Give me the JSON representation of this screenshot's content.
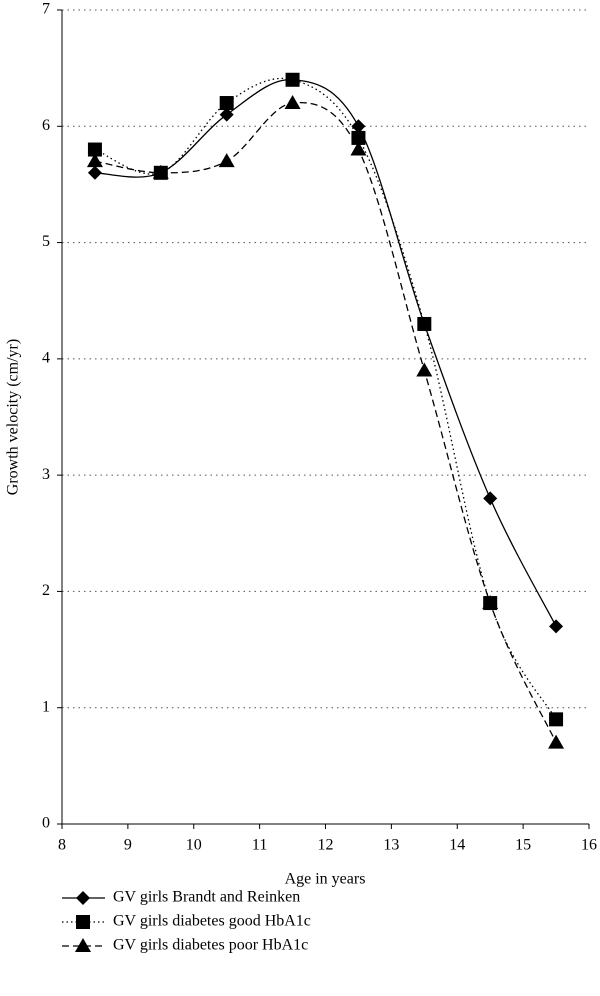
{
  "chart_data": {
    "type": "line",
    "x": [
      8.5,
      9.5,
      10.5,
      11.5,
      12.5,
      13.5,
      14.5,
      15.5
    ],
    "series": [
      {
        "name": "GV girls Brandt and Reinken",
        "color": "#000000",
        "line_style": "solid",
        "marker": "diamond",
        "values": [
          5.6,
          5.6,
          6.1,
          6.4,
          6.0,
          4.3,
          2.8,
          1.7
        ]
      },
      {
        "name": "GV girls diabetes good HbA1c",
        "color": "#000000",
        "line_style": "dotted",
        "marker": "square",
        "values": [
          5.8,
          5.6,
          6.2,
          6.4,
          5.9,
          4.3,
          1.9,
          0.9
        ]
      },
      {
        "name": "GV girls diabetes poor HbA1c",
        "color": "#000000",
        "line_style": "dashed",
        "marker": "triangle",
        "values": [
          5.7,
          5.6,
          5.7,
          6.2,
          5.8,
          3.9,
          1.9,
          0.7
        ]
      }
    ],
    "x_label": "Age in years",
    "y_label": "Growth velocity (cm/yr)",
    "xlim": [
      8,
      16
    ],
    "xticks": [
      8,
      9,
      10,
      11,
      12,
      13,
      14,
      15,
      16
    ],
    "ylim": [
      0,
      7
    ],
    "yticks": [
      0,
      1,
      2,
      3,
      4,
      5,
      6,
      7
    ],
    "grid": true,
    "smooth": true,
    "legend": "bottom"
  }
}
